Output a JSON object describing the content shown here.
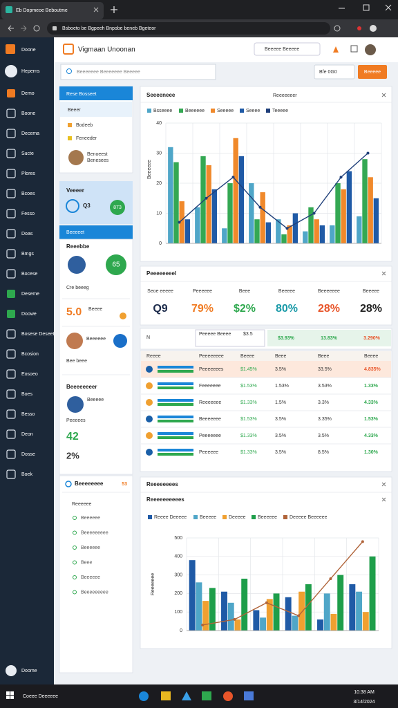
{
  "browser": {
    "tab": "Eb Dopmeoe Beboutme",
    "url": "Bsboeto be Bgpeeh Bnpobe beneb Bgeteor"
  },
  "sidebar": {
    "brand": "Doone",
    "user": "Heperns",
    "items": [
      "Demo",
      "Boone",
      "Decema",
      "Sucte",
      "Plores",
      "Bcoes",
      "Fesso",
      "Doas",
      "Bmgs",
      "Bocese",
      "Deseme",
      "Doowe",
      "Bosese Deseet",
      "Bcosion",
      "Eosoeo",
      "Boes",
      "Besso",
      "Deon",
      "Dosse",
      "Boek"
    ],
    "footer": "Doome"
  },
  "header": {
    "title": "Vigmaan Unoonan",
    "search": "Beeeee Beeeee",
    "filter_placeholder": "Beeeeeee Beeeeeee Beeeee",
    "button_group": "Bfe 0G0",
    "button": "Beeeee"
  },
  "left_panel": {
    "card_title": "Rese Bosseet",
    "selected": "Beeer",
    "items": [
      "Bodeeb",
      "Feneeder"
    ],
    "person": "Benoeest",
    "person_sub": "Benesees",
    "summary_title": "Veeeer",
    "summary_value": "Q3",
    "summary_badge": "873",
    "section": "Beeeeet",
    "team_title": "Reeebbe",
    "team_badge": "65",
    "team_note": "Cre beeeg",
    "rating": "5.0",
    "rating_label": "Beeee",
    "member": "Beeeeee",
    "member_note": "Bee beee",
    "stats_title": "Beeeeeeeer",
    "stats_name": "Beeeee",
    "stats_label": "Peeeees",
    "stats_value": "42",
    "stats_percent": "2%",
    "list_title": "Beeeeeeee",
    "list_badge": "53",
    "list_header": "Reeeeee",
    "list": [
      "Beeeeee",
      "Beeeeeeeee",
      "Beeeeee",
      "Beee",
      "Beeeeee",
      "Beeeeeeeee"
    ]
  },
  "kpi": {
    "title": "Peeeeeeeel",
    "items": [
      {
        "label": "Seoe eeeee",
        "value": "Q9"
      },
      {
        "label": "Peeeeee",
        "value": "79%"
      },
      {
        "label": "Beee",
        "value": "$2%"
      },
      {
        "label": "Beeeee",
        "value": "80%"
      },
      {
        "label": "Beeeeeee",
        "value": "28%"
      },
      {
        "label": "Beeeee",
        "value": "28%"
      }
    ]
  },
  "summary": {
    "label": "N",
    "name": "Peeeee Beeee",
    "amount": "$3.5",
    "values": [
      "$3.93%",
      "13.83%",
      "3.290%"
    ]
  },
  "table": {
    "header": [
      "Reeee",
      "Peeeeeeee",
      "Beeee",
      "Beee",
      "Beee",
      "Beeee"
    ],
    "rows": [
      [
        "Peeeeeees",
        "$1.45%",
        "3.5%",
        "33.5%",
        "4.835%"
      ],
      [
        "Feeeeeee",
        "$1.53%",
        "1.53%",
        "3.53%",
        "1.33%"
      ],
      [
        "Reeeeeee",
        "$1.33%",
        "1.5%",
        "3.3%",
        "4.33%"
      ],
      [
        "Beeeeeee",
        "$1.53%",
        "3.5%",
        "3.35%",
        "1.53%"
      ],
      [
        "Peeeeeee",
        "$1.33%",
        "3.5%",
        "3.5%",
        "4.33%"
      ],
      [
        "Peeeeee",
        "$1.33%",
        "3.5%",
        "8.5%",
        "1.30%"
      ]
    ]
  },
  "chart_data": [
    {
      "type": "bar",
      "title": "Seeeeneee",
      "subtitle": "Reeeeeeer",
      "ylabel": "Beeeeee",
      "categories": [
        null,
        null,
        null,
        null,
        null,
        null,
        null,
        null
      ],
      "series": [
        {
          "name": "Bsseeee",
          "color": "#4fa6c8",
          "values": [
            32,
            12,
            5,
            20,
            8,
            4,
            6,
            9
          ]
        },
        {
          "name": "Beeeeee",
          "color": "#34a853",
          "values": [
            27,
            29,
            20,
            8,
            3,
            12,
            20,
            28
          ]
        },
        {
          "name": "Seeeee",
          "color": "#f0892b",
          "values": [
            14,
            26,
            35,
            17,
            6,
            8,
            18,
            22
          ]
        },
        {
          "name": "Seeee",
          "color": "#1f5aa6",
          "values": [
            8,
            18,
            29,
            7,
            10,
            6,
            24,
            15
          ]
        },
        {
          "name": "Teeeee",
          "color": "#1f3f7a",
          "type": "line",
          "values": [
            7,
            15,
            22,
            12,
            5,
            10,
            22,
            30
          ]
        }
      ],
      "ylim": [
        0,
        40
      ],
      "yticks": [
        0,
        10,
        20,
        30,
        40
      ],
      "grid": true
    },
    {
      "type": "bar",
      "title": "Reeeeeeees",
      "subtitle": "Reeeeeeeeees",
      "ylabel": "Reeeeeee",
      "categories": [
        null,
        null,
        null,
        null,
        null,
        null
      ],
      "series": [
        {
          "name": "Reeee Deeeee",
          "color": "#1f5aa6",
          "values": [
            380,
            210,
            110,
            180,
            60,
            250
          ]
        },
        {
          "name": "Beeeee",
          "color": "#4fa6c8",
          "values": [
            260,
            150,
            70,
            80,
            200,
            210
          ]
        },
        {
          "name": "Deeeee",
          "color": "#f0a030",
          "values": [
            160,
            60,
            170,
            210,
            90,
            100
          ]
        },
        {
          "name": "Beeeeee",
          "color": "#1e9e4a",
          "values": [
            230,
            280,
            200,
            250,
            300,
            400
          ]
        },
        {
          "name": "Deeeee Beeeeee",
          "color": "#b0643a",
          "type": "line",
          "values": [
            30,
            60,
            150,
            80,
            280,
            480
          ]
        }
      ],
      "ylim": [
        0,
        500
      ],
      "yticks": [
        0,
        100,
        200,
        300,
        400,
        500
      ],
      "grid": true
    }
  ],
  "taskbar": {
    "search": "Coeee Deeeeee",
    "time": "10:38 AM",
    "date": "3/14/2024"
  }
}
